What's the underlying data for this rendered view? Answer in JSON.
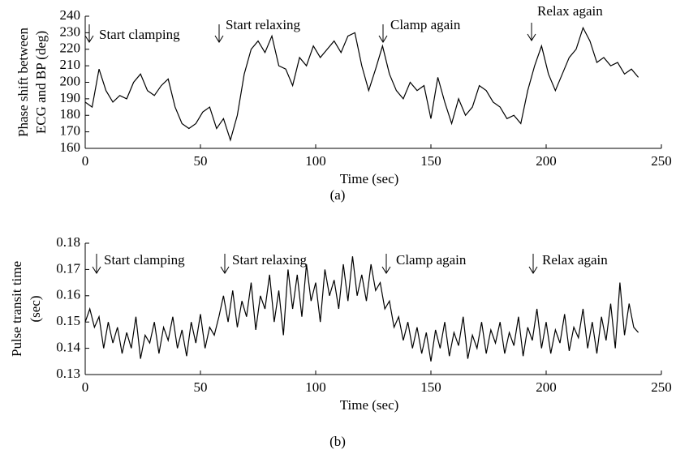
{
  "chart_data": [
    {
      "type": "line",
      "color": "#000000",
      "ylabel": [
        "Phase shift between",
        "ECG and BP (deg)"
      ],
      "xlabel": "Time (sec)",
      "caption": "(a)",
      "annotations": [
        "Start clamping",
        "Start relaxing",
        "Clamp again",
        "Relax again"
      ],
      "xlim": [
        0,
        250
      ],
      "xticks": [
        0,
        50,
        100,
        150,
        200,
        250
      ],
      "ylim": [
        160,
        240
      ],
      "yticks": [
        160,
        170,
        180,
        190,
        200,
        210,
        220,
        230,
        240
      ],
      "x": [
        0,
        3,
        6,
        9,
        12,
        15,
        18,
        21,
        24,
        27,
        30,
        33,
        36,
        39,
        42,
        45,
        48,
        51,
        54,
        57,
        60,
        63,
        66,
        69,
        72,
        75,
        78,
        81,
        84,
        87,
        90,
        93,
        96,
        99,
        102,
        105,
        108,
        111,
        114,
        117,
        120,
        123,
        126,
        129,
        132,
        135,
        138,
        141,
        144,
        147,
        150,
        153,
        156,
        159,
        162,
        165,
        168,
        171,
        174,
        177,
        180,
        183,
        186,
        189,
        192,
        195,
        198,
        201,
        204,
        207,
        210,
        213,
        216,
        219,
        222,
        225,
        228,
        231,
        234,
        237,
        240
      ],
      "values": [
        188,
        185,
        208,
        195,
        188,
        192,
        190,
        200,
        205,
        195,
        192,
        198,
        202,
        185,
        175,
        172,
        175,
        182,
        185,
        172,
        178,
        165,
        180,
        205,
        220,
        225,
        218,
        228,
        210,
        208,
        198,
        215,
        210,
        222,
        215,
        220,
        225,
        218,
        228,
        230,
        210,
        195,
        208,
        222,
        205,
        195,
        190,
        200,
        195,
        198,
        178,
        203,
        188,
        175,
        190,
        180,
        185,
        198,
        195,
        188,
        185,
        178,
        180,
        175,
        195,
        210,
        222,
        205,
        195,
        205,
        215,
        220,
        233,
        225,
        212,
        215,
        210,
        212,
        205,
        208,
        203
      ]
    },
    {
      "type": "line",
      "color": "#000000",
      "ylabel": [
        "Pulse transit time",
        "(sec)"
      ],
      "xlabel": "Time (sec)",
      "caption": "(b)",
      "annotations": [
        "Start clamping",
        "Start relaxing",
        "Clamp again",
        "Relax again"
      ],
      "xlim": [
        0,
        250
      ],
      "xticks": [
        0,
        50,
        100,
        150,
        200,
        250
      ],
      "ylim": [
        0.13,
        0.18
      ],
      "yticks": [
        0.13,
        0.14,
        0.15,
        0.16,
        0.17,
        0.18
      ],
      "x": [
        0,
        2,
        4,
        6,
        8,
        10,
        12,
        14,
        16,
        18,
        20,
        22,
        24,
        26,
        28,
        30,
        32,
        34,
        36,
        38,
        40,
        42,
        44,
        46,
        48,
        50,
        52,
        54,
        56,
        58,
        60,
        62,
        64,
        66,
        68,
        70,
        72,
        74,
        76,
        78,
        80,
        82,
        84,
        86,
        88,
        90,
        92,
        94,
        96,
        98,
        100,
        102,
        104,
        106,
        108,
        110,
        112,
        114,
        116,
        118,
        120,
        122,
        124,
        126,
        128,
        130,
        132,
        134,
        136,
        138,
        140,
        142,
        144,
        146,
        148,
        150,
        152,
        154,
        156,
        158,
        160,
        162,
        164,
        166,
        168,
        170,
        172,
        174,
        176,
        178,
        180,
        182,
        184,
        186,
        188,
        190,
        192,
        194,
        196,
        198,
        200,
        202,
        204,
        206,
        208,
        210,
        212,
        214,
        216,
        218,
        220,
        222,
        224,
        226,
        228,
        230,
        232,
        234,
        236,
        238,
        240
      ],
      "values": [
        0.15,
        0.155,
        0.148,
        0.152,
        0.14,
        0.15,
        0.142,
        0.148,
        0.138,
        0.146,
        0.14,
        0.152,
        0.136,
        0.145,
        0.142,
        0.15,
        0.138,
        0.148,
        0.143,
        0.152,
        0.14,
        0.147,
        0.137,
        0.15,
        0.142,
        0.153,
        0.14,
        0.148,
        0.145,
        0.152,
        0.16,
        0.15,
        0.162,
        0.148,
        0.158,
        0.152,
        0.165,
        0.147,
        0.16,
        0.155,
        0.168,
        0.15,
        0.162,
        0.145,
        0.17,
        0.155,
        0.168,
        0.152,
        0.172,
        0.158,
        0.165,
        0.15,
        0.17,
        0.16,
        0.166,
        0.155,
        0.172,
        0.158,
        0.175,
        0.16,
        0.168,
        0.158,
        0.172,
        0.162,
        0.165,
        0.155,
        0.158,
        0.148,
        0.152,
        0.143,
        0.15,
        0.14,
        0.148,
        0.138,
        0.146,
        0.135,
        0.147,
        0.14,
        0.15,
        0.137,
        0.146,
        0.141,
        0.152,
        0.136,
        0.145,
        0.14,
        0.15,
        0.138,
        0.147,
        0.142,
        0.15,
        0.138,
        0.146,
        0.141,
        0.152,
        0.137,
        0.148,
        0.143,
        0.155,
        0.14,
        0.15,
        0.138,
        0.147,
        0.142,
        0.153,
        0.139,
        0.148,
        0.144,
        0.155,
        0.14,
        0.15,
        0.138,
        0.152,
        0.143,
        0.157,
        0.14,
        0.165,
        0.145,
        0.157,
        0.148,
        0.146
      ]
    }
  ]
}
